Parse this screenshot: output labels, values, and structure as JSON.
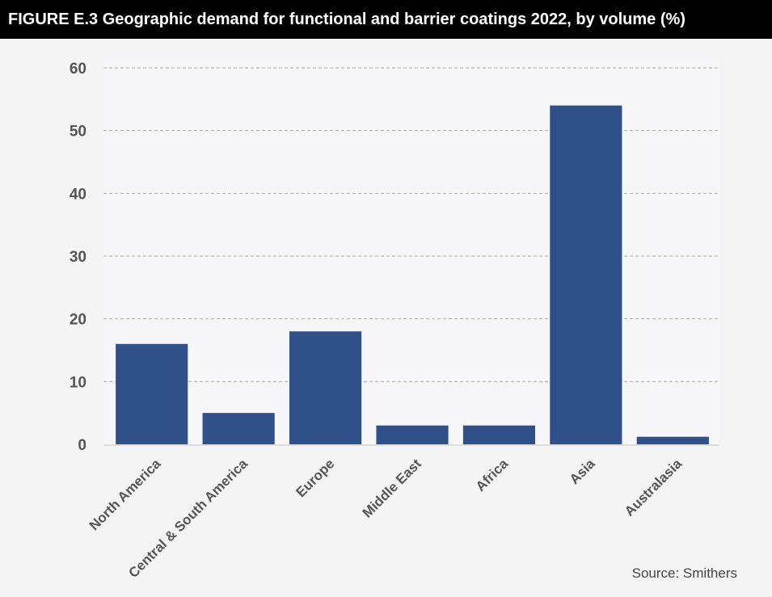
{
  "chart_data": {
    "type": "bar",
    "title": "FIGURE E.3 Geographic demand for functional and barrier coatings 2022, by volume (%)",
    "categories": [
      "North America",
      "Central & South America",
      "Europe",
      "Middle East",
      "Africa",
      "Asia",
      "Australasia"
    ],
    "values": [
      16,
      5,
      18,
      3,
      3,
      54,
      1.2
    ],
    "ylim": [
      0,
      60
    ],
    "yticks": [
      0,
      10,
      20,
      30,
      40,
      50,
      60
    ],
    "xlabel": "",
    "ylabel": "",
    "grid": true,
    "bar_color": "#2f5089",
    "source": "Source: Smithers"
  }
}
